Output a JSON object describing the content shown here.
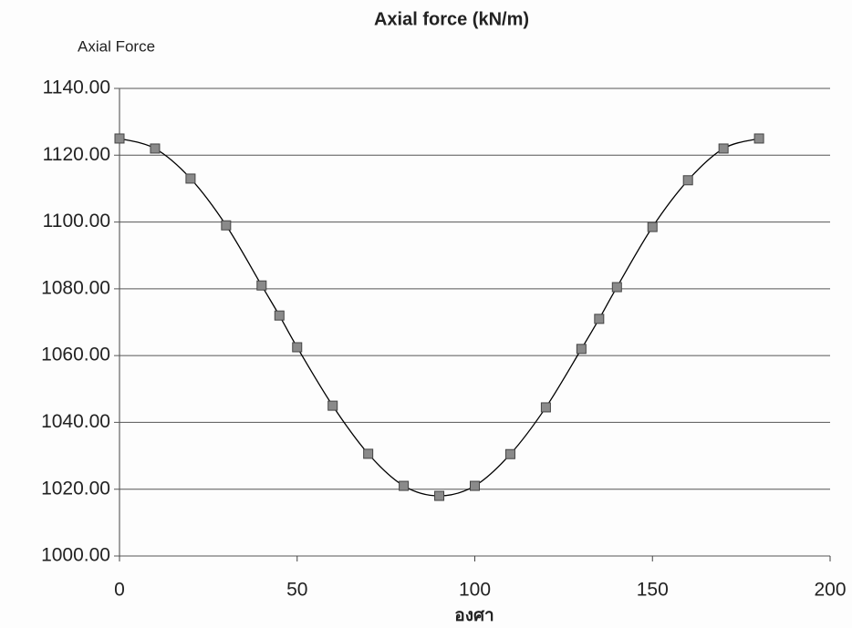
{
  "chart_data": {
    "type": "scatter",
    "smooth": true,
    "title": "Axial force (kN/m)",
    "y_label": "Axial Force",
    "x_label": "องศา",
    "x": [
      0,
      10,
      20,
      30,
      40,
      45,
      50,
      60,
      70,
      80,
      90,
      100,
      110,
      120,
      130,
      135,
      140,
      150,
      160,
      170,
      180
    ],
    "values": [
      1125,
      1122,
      1113,
      1099,
      1081,
      1072,
      1062.5,
      1045,
      1030.6,
      1021,
      1018,
      1021,
      1030.5,
      1044.5,
      1062,
      1071,
      1080.5,
      1098.5,
      1112.5,
      1122,
      1125
    ],
    "color": "#8a8a8a",
    "line_color": "#000000",
    "xlim": [
      0,
      200
    ],
    "xticks": [
      0,
      50,
      100,
      150,
      200
    ],
    "ylim": [
      1000,
      1140
    ],
    "yticks": [
      {
        "value": 1000,
        "label": "1000.00"
      },
      {
        "value": 1020,
        "label": "1020.00"
      },
      {
        "value": 1040,
        "label": "1040.00"
      },
      {
        "value": 1060,
        "label": "1060.00"
      },
      {
        "value": 1080,
        "label": "1080.00"
      },
      {
        "value": 1100,
        "label": "1100.00"
      },
      {
        "value": 1120,
        "label": "1120.00"
      },
      {
        "value": 1140,
        "label": "1140.00"
      }
    ],
    "grid": true
  }
}
